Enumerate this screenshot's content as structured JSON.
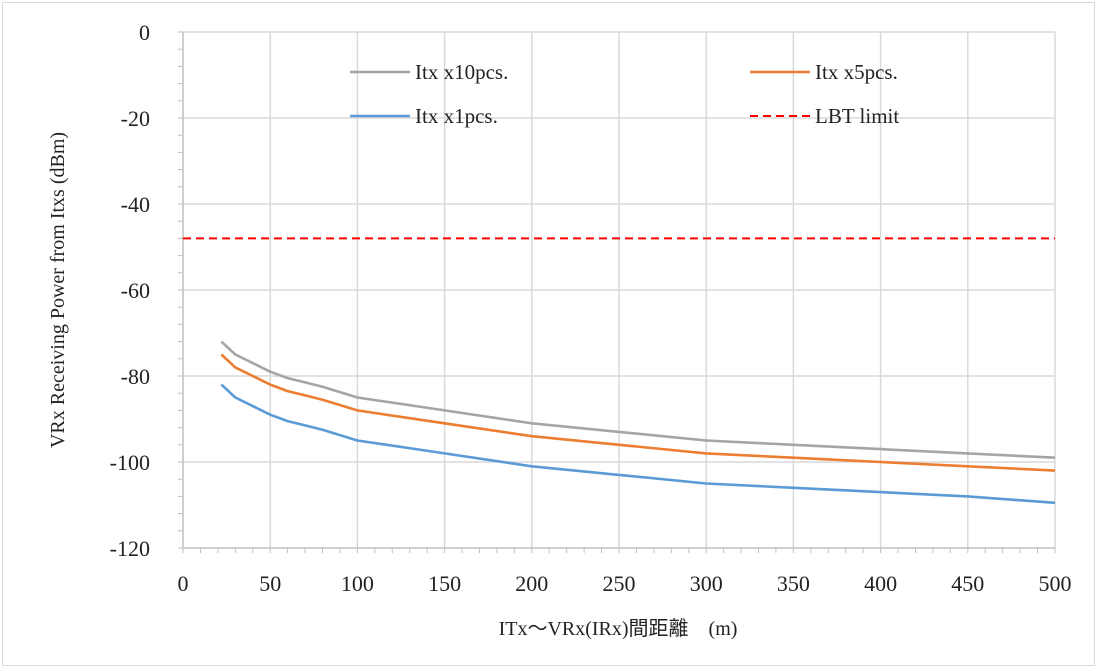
{
  "chart_data": {
    "type": "line",
    "title": "",
    "xlabel": "ITx～VRx(IRx)間距離　(m)",
    "ylabel": "VRx Receiving Power from Itxs (dBm)",
    "xlim": [
      0,
      500
    ],
    "ylim": [
      -120,
      0
    ],
    "x_ticks": [
      0,
      50,
      100,
      150,
      200,
      250,
      300,
      350,
      400,
      450,
      500
    ],
    "y_ticks": [
      0,
      -20,
      -40,
      -60,
      -80,
      -100,
      -120
    ],
    "grid": true,
    "legend_position": "top",
    "series": [
      {
        "name": "Itx x10pcs.",
        "color": "#a5a5a5",
        "dash": "solid",
        "x": [
          22,
          30,
          40,
          50,
          60,
          70,
          80,
          100,
          150,
          200,
          250,
          300,
          350,
          400,
          450,
          500
        ],
        "y": [
          -72,
          -75,
          -77,
          -79,
          -80.5,
          -81.5,
          -82.5,
          -85,
          -88,
          -91,
          -93,
          -95,
          -96,
          -97,
          -98,
          -99
        ]
      },
      {
        "name": "Itx x5pcs.",
        "color": "#ed7d31",
        "dash": "solid",
        "x": [
          22,
          30,
          40,
          50,
          60,
          70,
          80,
          100,
          150,
          200,
          250,
          300,
          350,
          400,
          450,
          500
        ],
        "y": [
          -75,
          -78,
          -80,
          -82,
          -83.5,
          -84.5,
          -85.5,
          -88,
          -91,
          -94,
          -96,
          -98,
          -99,
          -100,
          -101,
          -102
        ]
      },
      {
        "name": "Itx x1pcs.",
        "color": "#5b9bd5",
        "dash": "solid",
        "x": [
          22,
          30,
          40,
          50,
          60,
          70,
          80,
          100,
          150,
          200,
          250,
          300,
          350,
          400,
          450,
          500
        ],
        "y": [
          -82,
          -85,
          -87,
          -89,
          -90.5,
          -91.5,
          -92.5,
          -95,
          -98,
          -101,
          -103,
          -105,
          -106,
          -107,
          -108,
          -109.5
        ]
      },
      {
        "name": "LBT limit",
        "color": "#ff0000",
        "dash": "dashed",
        "x": [
          0,
          500
        ],
        "y": [
          -48,
          -48
        ]
      }
    ],
    "legend_layout": [
      [
        "Itx x10pcs.",
        "Itx x5pcs."
      ],
      [
        "Itx x1pcs.",
        "LBT limit"
      ]
    ]
  }
}
